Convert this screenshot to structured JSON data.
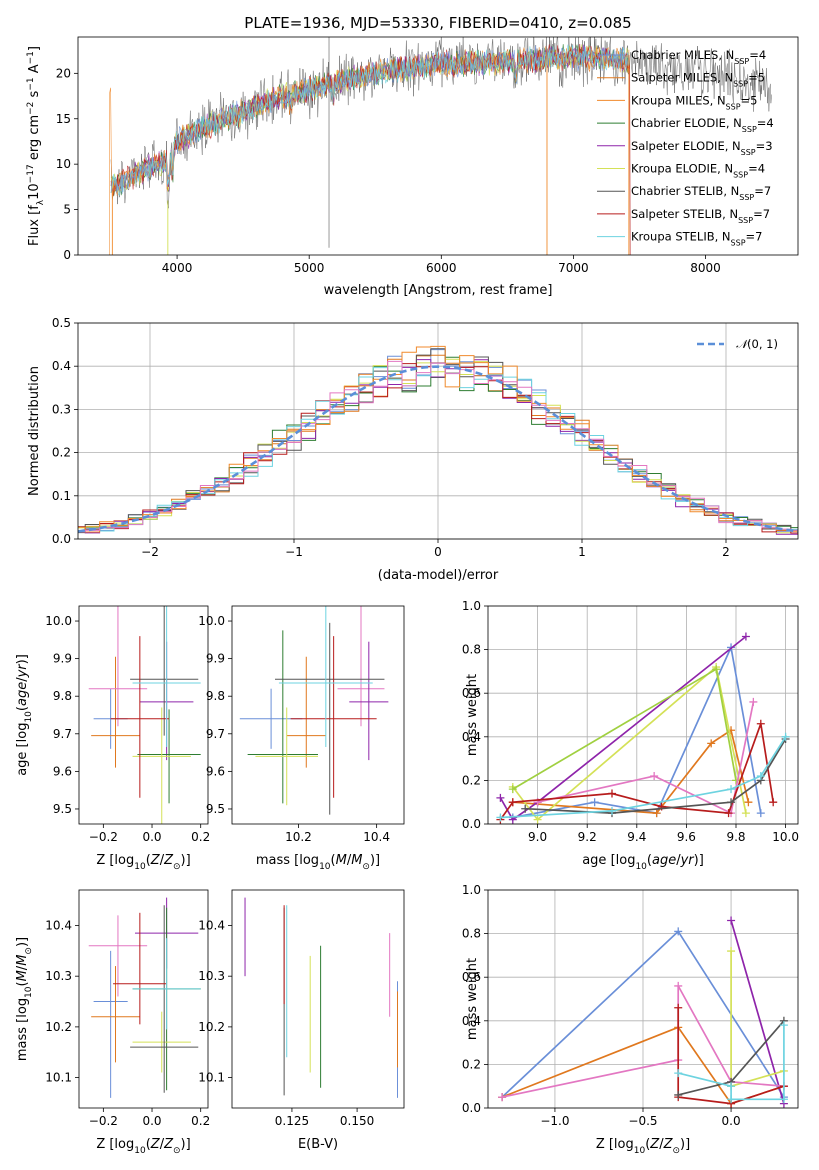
{
  "figure": {
    "title": "PLATE=1936, MJD=53330, FIBERID=0410, z=0.085"
  },
  "colors": {
    "series": [
      "#6a8fd8",
      "#e0781e",
      "#f08a2c",
      "#2e7d32",
      "#8e24aa",
      "#d4e157",
      "#555555",
      "#b71c1c",
      "#6dd3e0"
    ],
    "gaussian": "#5b8fd8",
    "extra": [
      "#e377c2",
      "#a0d040",
      "#26c6da"
    ]
  },
  "chart_data": [
    {
      "id": "spectrum",
      "type": "line",
      "xlabel": "wavelength [Angstrom, rest frame]",
      "ylabel": "Flux [f_λ10^-17 erg cm^-2 s^-1 A^-1]",
      "xlim": [
        3250,
        8700
      ],
      "ylim": [
        0,
        24
      ],
      "xticks": [
        4000,
        5000,
        6000,
        7000,
        8000
      ],
      "yticks": [
        0,
        5,
        10,
        15,
        20
      ],
      "grid": false,
      "legend_position": "right",
      "legend": [
        {
          "label": "Chabrier MILES, N",
          "sub": "SSP",
          "suffix": "=4"
        },
        {
          "label": "Salpeter MILES, N",
          "sub": "SSP",
          "suffix": "=5"
        },
        {
          "label": "Kroupa MILES, N",
          "sub": "SSP",
          "suffix": "=5"
        },
        {
          "label": "Chabrier ELODIE, N",
          "sub": "SSP",
          "suffix": "=4"
        },
        {
          "label": "Salpeter ELODIE, N",
          "sub": "SSP",
          "suffix": "=3"
        },
        {
          "label": "Kroupa ELODIE, N",
          "sub": "SSP",
          "suffix": "=4"
        },
        {
          "label": "Chabrier STELIB, N",
          "sub": "SSP",
          "suffix": "=7"
        },
        {
          "label": "Salpeter STELIB, N",
          "sub": "SSP",
          "suffix": "=7"
        },
        {
          "label": "Kroupa STELIB, N",
          "sub": "SSP",
          "suffix": "=7"
        }
      ],
      "continuum": [
        [
          3500,
          7.5
        ],
        [
          3700,
          9
        ],
        [
          3950,
          10.5
        ],
        [
          4000,
          12.5
        ],
        [
          4200,
          14
        ],
        [
          4500,
          15.8
        ],
        [
          4800,
          17.5
        ],
        [
          5200,
          19
        ],
        [
          5600,
          20.3
        ],
        [
          6000,
          21
        ],
        [
          6500,
          21.3
        ],
        [
          7000,
          21.8
        ],
        [
          7400,
          21.5
        ],
        [
          7700,
          20.5
        ],
        [
          8000,
          20
        ],
        [
          8200,
          19.5
        ],
        [
          8400,
          18.5
        ],
        [
          8500,
          18
        ]
      ]
    },
    {
      "id": "residuals",
      "type": "histogram",
      "xlabel": "(data-model)/error",
      "ylabel": "Normed distribution",
      "xlim": [
        -2.5,
        2.5
      ],
      "ylim": [
        0,
        0.5
      ],
      "xticks": [
        -2,
        -1,
        0,
        1,
        2
      ],
      "yticks": [
        0.0,
        0.1,
        0.2,
        0.3,
        0.4,
        0.5
      ],
      "grid": true,
      "bin_width": 0.1,
      "reference_curve": "N(0, 1)",
      "legend_position": "upper right"
    },
    {
      "id": "age_vs_Z",
      "type": "errorbar",
      "xlabel": "Z [log10(Z/Z⊙)]",
      "ylabel": "age  [log10(age/yr)]",
      "xlim": [
        -0.3,
        0.23
      ],
      "ylim": [
        9.46,
        10.04
      ],
      "xticks": [
        -0.2,
        0.0,
        0.2
      ],
      "yticks": [
        9.5,
        9.6,
        9.7,
        9.8,
        9.9,
        10.0
      ],
      "points": [
        {
          "x": -0.17,
          "xerr": 0.07,
          "y": 9.74,
          "yerr": [
            0.08,
            0.08
          ],
          "series": 0
        },
        {
          "x": -0.15,
          "xerr": 0.1,
          "y": 9.695,
          "yerr": [
            0.085,
            0.21
          ],
          "series": 1
        },
        {
          "x": -0.14,
          "xerr": 0.12,
          "y": 9.82,
          "yerr": [
            0.1,
            0.29
          ],
          "series": 9
        },
        {
          "x": 0.06,
          "xerr": 0.11,
          "y": 9.785,
          "yerr": [
            0.155,
            0.16
          ],
          "series": 4
        },
        {
          "x": 0.07,
          "xerr": 0.13,
          "y": 9.645,
          "yerr": [
            0.13,
            0.12
          ],
          "series": 3
        },
        {
          "x": 0.04,
          "xerr": 0.12,
          "y": 9.64,
          "yerr": [
            0.35,
            0.13
          ],
          "series": 5
        },
        {
          "x": 0.05,
          "xerr": 0.14,
          "y": 9.845,
          "yerr": [
            0.15,
            0.36
          ],
          "series": 6
        },
        {
          "x": -0.05,
          "xerr": 0.12,
          "y": 9.74,
          "yerr": [
            0.21,
            0.22
          ],
          "series": 7
        },
        {
          "x": 0.06,
          "xerr": 0.14,
          "y": 9.835,
          "yerr": [
            0.17,
            0.33
          ],
          "series": 8
        }
      ]
    },
    {
      "id": "age_vs_mass",
      "type": "errorbar",
      "xlabel": "mass [log10(M/M⊙)]",
      "xlim": [
        10.03,
        10.47
      ],
      "ylim": [
        9.46,
        10.04
      ],
      "xticks": [
        10.2,
        10.4
      ],
      "yticks": [
        9.5,
        9.6,
        9.7,
        9.8,
        9.9,
        10.0
      ],
      "points": [
        {
          "x": 10.13,
          "xerr": 0.08,
          "y": 9.74,
          "yerr": [
            0.08,
            0.08
          ],
          "series": 0
        },
        {
          "x": 10.22,
          "xerr": 0.05,
          "y": 9.695,
          "yerr": [
            0.085,
            0.21
          ],
          "series": 1
        },
        {
          "x": 10.36,
          "xerr": 0.06,
          "y": 9.82,
          "yerr": [
            0.1,
            0.29
          ],
          "series": 9
        },
        {
          "x": 10.38,
          "xerr": 0.05,
          "y": 9.785,
          "yerr": [
            0.155,
            0.16
          ],
          "series": 4
        },
        {
          "x": 10.16,
          "xerr": 0.09,
          "y": 9.645,
          "yerr": [
            0.13,
            0.33
          ],
          "series": 3
        },
        {
          "x": 10.17,
          "xerr": 0.08,
          "y": 9.64,
          "yerr": [
            0.13,
            0.13
          ],
          "series": 5
        },
        {
          "x": 10.28,
          "xerr": 0.14,
          "y": 9.845,
          "yerr": [
            0.36,
            0.15
          ],
          "series": 6
        },
        {
          "x": 10.29,
          "xerr": 0.11,
          "y": 9.74,
          "yerr": [
            0.21,
            0.22
          ],
          "series": 7
        },
        {
          "x": 10.27,
          "xerr": 0.12,
          "y": 9.835,
          "yerr": [
            0.17,
            0.33
          ],
          "series": 8
        }
      ]
    },
    {
      "id": "weight_vs_age",
      "type": "line",
      "xlabel": "age  [log10(age/yr)]",
      "ylabel": "mass weight",
      "xlim": [
        8.8,
        10.05
      ],
      "ylim": [
        0,
        1
      ],
      "xticks": [
        9.0,
        9.2,
        9.4,
        9.6,
        9.8,
        10.0
      ],
      "yticks": [
        0.0,
        0.2,
        0.4,
        0.6,
        0.8,
        1.0
      ],
      "grid": true,
      "series": [
        {
          "color": 0,
          "points": [
            [
              8.9,
              0.03
            ],
            [
              9.23,
              0.1
            ],
            [
              9.48,
              0.05
            ],
            [
              9.78,
              0.81
            ],
            [
              9.9,
              0.05
            ]
          ]
        },
        {
          "color": 1,
          "points": [
            [
              8.9,
              0.1
            ],
            [
              9.48,
              0.05
            ],
            [
              9.7,
              0.37
            ],
            [
              9.78,
              0.43
            ],
            [
              9.85,
              0.1
            ]
          ]
        },
        {
          "color": 4,
          "points": [
            [
              8.85,
              0.12
            ],
            [
              8.9,
              0.02
            ],
            [
              9.0,
              0.1
            ],
            [
              9.84,
              0.86
            ]
          ]
        },
        {
          "color": 5,
          "points": [
            [
              8.9,
              0.17
            ],
            [
              9.0,
              0.02
            ],
            [
              9.72,
              0.72
            ],
            [
              9.84,
              0.05
            ]
          ]
        },
        {
          "color": 10,
          "points": [
            [
              8.9,
              0.16
            ],
            [
              9.72,
              0.71
            ],
            [
              9.8,
              0.2
            ]
          ]
        },
        {
          "color": 9,
          "points": [
            [
              9.0,
              0.1
            ],
            [
              9.47,
              0.22
            ],
            [
              9.78,
              0.05
            ],
            [
              9.87,
              0.56
            ]
          ]
        },
        {
          "color": 7,
          "points": [
            [
              8.85,
              0.02
            ],
            [
              8.9,
              0.1
            ],
            [
              9.3,
              0.14
            ],
            [
              9.5,
              0.08
            ],
            [
              9.77,
              0.05
            ],
            [
              9.9,
              0.46
            ],
            [
              9.95,
              0.1
            ]
          ]
        },
        {
          "color": 6,
          "points": [
            [
              8.95,
              0.07
            ],
            [
              9.3,
              0.05
            ],
            [
              9.78,
              0.1
            ],
            [
              9.9,
              0.2
            ],
            [
              10.0,
              0.39
            ]
          ]
        },
        {
          "color": 8,
          "points": [
            [
              8.85,
              0.03
            ],
            [
              9.3,
              0.06
            ],
            [
              9.78,
              0.16
            ],
            [
              9.9,
              0.22
            ],
            [
              10.0,
              0.4
            ]
          ]
        }
      ]
    },
    {
      "id": "mass_vs_Z",
      "type": "errorbar",
      "xlabel": "Z [log10(Z/Z⊙)]",
      "ylabel": "mass [log10(M/M⊙)]",
      "xlim": [
        -0.3,
        0.23
      ],
      "ylim": [
        10.04,
        10.47
      ],
      "xticks": [
        -0.2,
        0.0,
        0.2
      ],
      "yticks": [
        10.1,
        10.2,
        10.3,
        10.4
      ],
      "points": [
        {
          "x": -0.17,
          "xerr": 0.07,
          "y": 10.25,
          "yerr": [
            0.19,
            0.1
          ],
          "series": 0
        },
        {
          "x": -0.15,
          "xerr": 0.1,
          "y": 10.22,
          "yerr": [
            0.09,
            0.1
          ],
          "series": 1
        },
        {
          "x": -0.14,
          "xerr": 0.12,
          "y": 10.36,
          "yerr": [
            0.1,
            0.06
          ],
          "series": 9
        },
        {
          "x": 0.06,
          "xerr": 0.13,
          "y": 10.385,
          "yerr": [
            0.07,
            0.07
          ],
          "series": 4
        },
        {
          "x": 0.06,
          "xerr": 0.14,
          "y": 10.275,
          "yerr": [
            0.2,
            0.16
          ],
          "series": 3
        },
        {
          "x": 0.04,
          "xerr": 0.12,
          "y": 10.17,
          "yerr": [
            0.06,
            0.06
          ],
          "series": 5
        },
        {
          "x": 0.05,
          "xerr": 0.14,
          "y": 10.16,
          "yerr": [
            0.09,
            0.28
          ],
          "series": 6
        },
        {
          "x": -0.05,
          "xerr": 0.11,
          "y": 10.285,
          "yerr": [
            0.08,
            0.14
          ],
          "series": 7
        },
        {
          "x": 0.06,
          "xerr": 0.14,
          "y": 10.275,
          "yerr": [
            0.08,
            0.1
          ],
          "series": 8
        }
      ]
    },
    {
      "id": "mass_vs_ebv",
      "type": "errorbar",
      "xlabel": "E(B-V)",
      "xlim": [
        0.102,
        0.168
      ],
      "ylim": [
        10.04,
        10.47
      ],
      "xticks": [
        0.125,
        0.15
      ],
      "xtick_labels": [
        "0.125",
        "0.150"
      ],
      "yticks": [
        10.1,
        10.2,
        10.3,
        10.4
      ],
      "points": [
        {
          "x": 0.1655,
          "y": 10.175,
          "yerr": [
            0.115,
            0.115
          ],
          "series": 0
        },
        {
          "x": 0.1655,
          "y": 10.2,
          "yerr": [
            0.08,
            0.07
          ],
          "series": 1
        },
        {
          "x": 0.1625,
          "y": 10.3,
          "yerr": [
            0.08,
            0.085
          ],
          "series": 9
        },
        {
          "x": 0.107,
          "y": 10.375,
          "yerr": [
            0.075,
            0.08
          ],
          "series": 4
        },
        {
          "x": 0.136,
          "y": 10.255,
          "yerr": [
            0.175,
            0.105
          ],
          "series": 3
        },
        {
          "x": 0.132,
          "y": 10.22,
          "yerr": [
            0.11,
            0.12
          ],
          "series": 5
        },
        {
          "x": 0.122,
          "y": 10.225,
          "yerr": [
            0.16,
            0.21
          ],
          "series": 6
        },
        {
          "x": 0.122,
          "y": 10.345,
          "yerr": [
            0.1,
            0.095
          ],
          "series": 7
        },
        {
          "x": 0.123,
          "y": 10.24,
          "yerr": [
            0.1,
            0.2
          ],
          "series": 8
        }
      ]
    },
    {
      "id": "weight_vs_Z",
      "type": "line",
      "xlabel": "Z [log10(Z/Z⊙)]",
      "ylabel": "mass weight",
      "xlim": [
        -1.38,
        0.38
      ],
      "ylim": [
        0,
        1
      ],
      "xticks": [
        -1.0,
        -0.5,
        0.0
      ],
      "yticks": [
        0.0,
        0.2,
        0.4,
        0.6,
        0.8,
        1.0
      ],
      "grid": true,
      "series": [
        {
          "color": 0,
          "points": [
            [
              -1.3,
              0.05
            ],
            [
              -0.3,
              0.81
            ],
            [
              0.3,
              0.05
            ]
          ]
        },
        {
          "color": 1,
          "points": [
            [
              -1.3,
              0.05
            ],
            [
              -0.3,
              0.37
            ],
            [
              0.0,
              0.02
            ],
            [
              0.3,
              0.1
            ]
          ]
        },
        {
          "color": 4,
          "points": [
            [
              0.0,
              0.86
            ],
            [
              0.3,
              0.02
            ]
          ]
        },
        {
          "color": 5,
          "points": [
            [
              0.0,
              0.72
            ],
            [
              0.0,
              0.1
            ],
            [
              0.3,
              0.17
            ]
          ]
        },
        {
          "color": 9,
          "points": [
            [
              -1.3,
              0.05
            ],
            [
              -0.3,
              0.22
            ],
            [
              -0.3,
              0.56
            ],
            [
              0.0,
              0.12
            ],
            [
              0.3,
              0.1
            ]
          ]
        },
        {
          "color": 7,
          "points": [
            [
              -0.3,
              0.46
            ],
            [
              -0.3,
              0.05
            ],
            [
              0.0,
              0.02
            ],
            [
              0.3,
              0.1
            ]
          ]
        },
        {
          "color": 6,
          "points": [
            [
              -0.3,
              0.06
            ],
            [
              0.0,
              0.12
            ],
            [
              0.3,
              0.4
            ]
          ]
        },
        {
          "color": 8,
          "points": [
            [
              -0.3,
              0.16
            ],
            [
              0.0,
              0.1
            ],
            [
              0.0,
              0.04
            ],
            [
              0.3,
              0.04
            ],
            [
              0.3,
              0.38
            ]
          ]
        }
      ]
    }
  ]
}
